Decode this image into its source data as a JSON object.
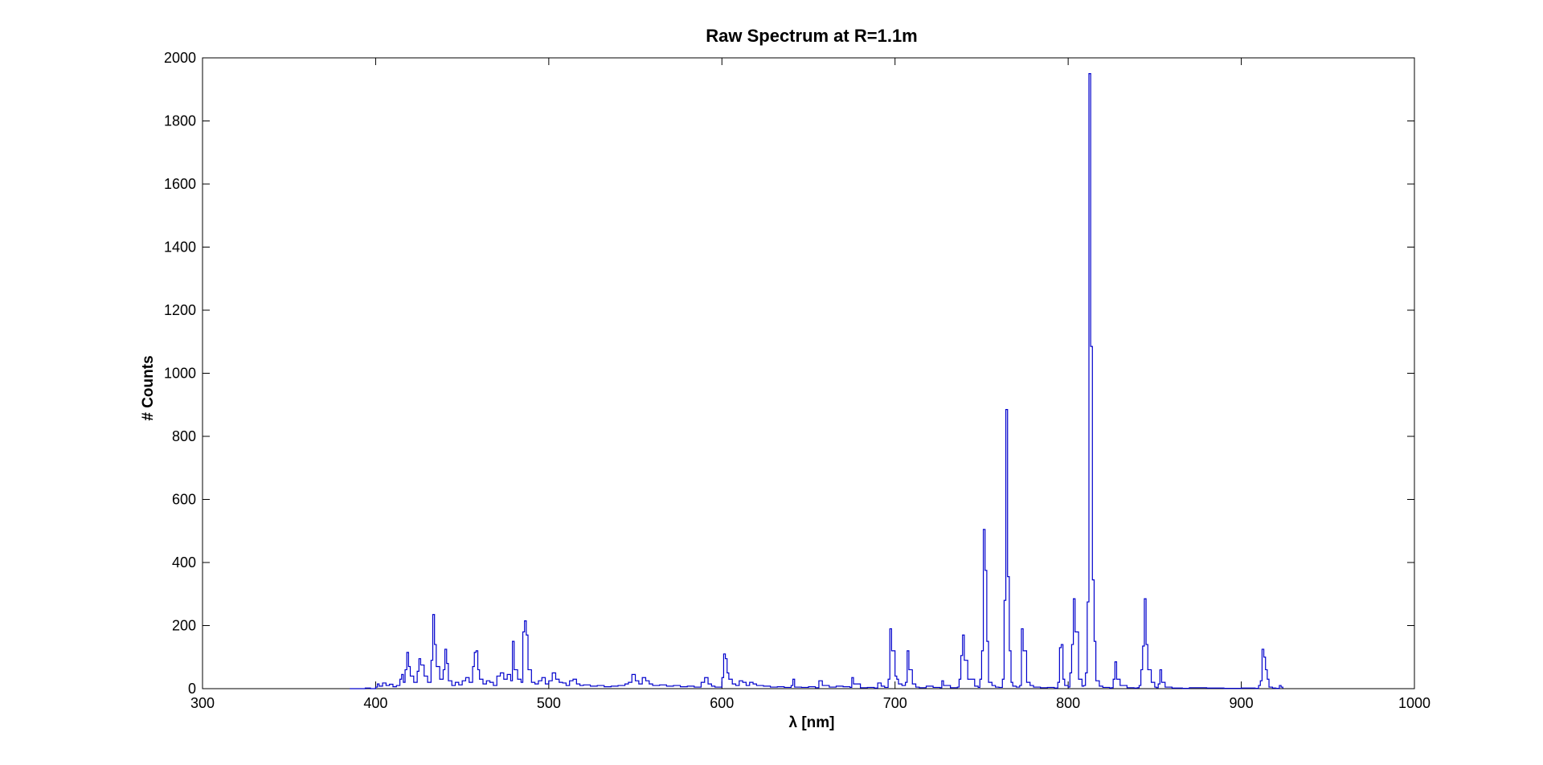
{
  "chart_data": {
    "type": "line",
    "title": "Raw Spectrum at R=1.1m",
    "xlabel": "λ [nm]",
    "ylabel": "# Counts",
    "xlim": [
      300,
      1000
    ],
    "ylim": [
      0,
      2000
    ],
    "xticks": [
      "300",
      "400",
      "500",
      "600",
      "700",
      "800",
      "900",
      "1000"
    ],
    "yticks": [
      "0",
      "200",
      "400",
      "600",
      "800",
      "1000",
      "1200",
      "1400",
      "1600",
      "1800",
      "2000"
    ],
    "grid": false,
    "line_color": "#0000cc",
    "series": [
      {
        "style": "step",
        "x": [
          385,
          394,
          397,
          400,
          401,
          402,
          404,
          406,
          408,
          410,
          412,
          414,
          415,
          416,
          417,
          418,
          419,
          420,
          422,
          424,
          425,
          426,
          428,
          430,
          432,
          433,
          434,
          435,
          437,
          439,
          440,
          441,
          442,
          444,
          446,
          448,
          450,
          452,
          454,
          456,
          457,
          458,
          459,
          460,
          462,
          464,
          466,
          468,
          470,
          472,
          474,
          476,
          478,
          479,
          480,
          482,
          484,
          485,
          486,
          487,
          488,
          490,
          492,
          494,
          496,
          498,
          500,
          502,
          504,
          506,
          508,
          510,
          512,
          514,
          516,
          518,
          520,
          524,
          528,
          532,
          536,
          540,
          544,
          546,
          548,
          550,
          552,
          554,
          556,
          558,
          560,
          564,
          568,
          572,
          576,
          580,
          584,
          588,
          590,
          592,
          594,
          596,
          600,
          601,
          602,
          603,
          604,
          606,
          608,
          610,
          612,
          614,
          616,
          618,
          620,
          624,
          628,
          632,
          636,
          640,
          641,
          642,
          646,
          650,
          654,
          656,
          658,
          662,
          666,
          670,
          674,
          675,
          676,
          680,
          684,
          688,
          690,
          692,
          694,
          696,
          697,
          698,
          700,
          701,
          702,
          704,
          706,
          707,
          708,
          710,
          712,
          714,
          718,
          722,
          726,
          727,
          728,
          732,
          736,
          737,
          738,
          739,
          740,
          742,
          746,
          748,
          749,
          750,
          751,
          752,
          753,
          754,
          756,
          758,
          760,
          762,
          763,
          764,
          765,
          766,
          767,
          768,
          770,
          772,
          773,
          774,
          776,
          778,
          780,
          784,
          788,
          792,
          794,
          795,
          796,
          797,
          798,
          800,
          801,
          802,
          803,
          804,
          806,
          808,
          809,
          810,
          811,
          812,
          813,
          814,
          815,
          816,
          818,
          820,
          824,
          825,
          826,
          827,
          828,
          830,
          834,
          838,
          840,
          841,
          842,
          843,
          844,
          845,
          846,
          848,
          850,
          851,
          852,
          853,
          854,
          856,
          860,
          866,
          870,
          880,
          890,
          900,
          908,
          910,
          911,
          912,
          913,
          914,
          915,
          916,
          918,
          920,
          922,
          923,
          924
        ],
        "y": [
          0,
          2,
          0,
          5,
          15,
          8,
          18,
          10,
          14,
          6,
          10,
          30,
          45,
          20,
          60,
          115,
          70,
          40,
          20,
          55,
          95,
          75,
          40,
          20,
          90,
          235,
          140,
          70,
          30,
          60,
          125,
          80,
          25,
          10,
          20,
          12,
          25,
          35,
          20,
          70,
          115,
          120,
          60,
          30,
          15,
          25,
          20,
          10,
          40,
          50,
          30,
          45,
          25,
          150,
          60,
          30,
          20,
          180,
          215,
          170,
          60,
          20,
          15,
          25,
          35,
          15,
          25,
          50,
          30,
          20,
          18,
          10,
          25,
          30,
          15,
          10,
          12,
          8,
          10,
          6,
          8,
          10,
          15,
          20,
          45,
          25,
          15,
          35,
          25,
          15,
          10,
          12,
          8,
          10,
          6,
          8,
          5,
          20,
          35,
          15,
          8,
          5,
          35,
          110,
          95,
          50,
          30,
          15,
          10,
          25,
          20,
          10,
          20,
          15,
          10,
          8,
          5,
          6,
          4,
          10,
          30,
          5,
          4,
          6,
          3,
          25,
          10,
          5,
          8,
          6,
          4,
          35,
          15,
          3,
          4,
          2,
          18,
          8,
          4,
          30,
          190,
          120,
          40,
          30,
          15,
          10,
          20,
          120,
          60,
          15,
          5,
          3,
          8,
          4,
          3,
          25,
          10,
          3,
          5,
          30,
          105,
          170,
          90,
          30,
          8,
          4,
          30,
          120,
          505,
          375,
          150,
          20,
          10,
          5,
          4,
          30,
          280,
          885,
          355,
          120,
          20,
          8,
          5,
          10,
          190,
          120,
          20,
          10,
          5,
          3,
          4,
          2,
          20,
          130,
          140,
          30,
          10,
          5,
          50,
          140,
          285,
          180,
          30,
          8,
          10,
          50,
          275,
          1950,
          1085,
          345,
          150,
          25,
          8,
          4,
          2,
          3,
          30,
          85,
          30,
          10,
          3,
          2,
          3,
          10,
          60,
          135,
          285,
          140,
          60,
          20,
          5,
          3,
          15,
          60,
          20,
          5,
          2,
          1,
          3,
          2,
          1,
          2,
          1,
          10,
          25,
          125,
          100,
          60,
          30,
          5,
          2,
          1,
          10,
          5,
          1
        ]
      }
    ]
  }
}
